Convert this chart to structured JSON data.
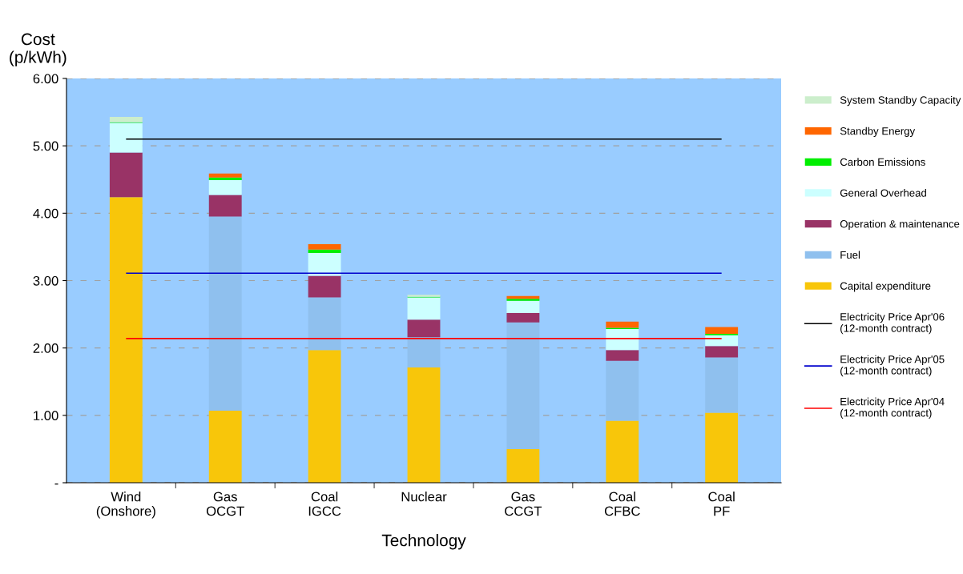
{
  "chart_data": {
    "type": "bar",
    "stacked": true,
    "xlabel": "Technology",
    "ylabel": "Cost\n(p/kWh)",
    "categories": [
      "Wind\n(Onshore)",
      "Gas\nOCGT",
      "Coal\nIGCC",
      "Nuclear",
      "Gas\nCCGT",
      "Coal\nCFBC",
      "Coal\nPF"
    ],
    "series": [
      {
        "name": "Capital expenditure",
        "color": "#f8c60a",
        "values": [
          4.24,
          1.07,
          1.97,
          1.71,
          0.5,
          0.92,
          1.04
        ]
      },
      {
        "name": "Fuel",
        "color": "#8fc0ee",
        "values": [
          0,
          2.88,
          0.78,
          0.45,
          1.88,
          0.89,
          0.82
        ]
      },
      {
        "name": "Operation & maintenance",
        "color": "#993366",
        "values": [
          0.66,
          0.32,
          0.32,
          0.26,
          0.14,
          0.16,
          0.17
        ]
      },
      {
        "name": "General Overhead",
        "color": "#ccffff",
        "values": [
          0.44,
          0.22,
          0.34,
          0.33,
          0.18,
          0.31,
          0.16
        ]
      },
      {
        "name": "Carbon Emissions",
        "color": "#00ee00",
        "values": [
          0.01,
          0.04,
          0.05,
          0.01,
          0.03,
          0.02,
          0.02
        ]
      },
      {
        "name": "Standby Energy",
        "color": "#ff6600",
        "values": [
          0,
          0.06,
          0.08,
          0,
          0.04,
          0.09,
          0.1
        ]
      },
      {
        "name": "System Standby Capacity",
        "color": "#cceecc",
        "values": [
          0.08,
          0,
          0,
          0.03,
          0,
          0,
          0
        ]
      }
    ],
    "ref_lines": [
      {
        "axis": "y",
        "value": 5.1,
        "label": "Electricity Price Apr'06\n(12-month contract)",
        "color": "#000000"
      },
      {
        "axis": "y",
        "value": 3.11,
        "label": "Electricity Price Apr'05\n(12-month contract)",
        "color": "#0000cc"
      },
      {
        "axis": "y",
        "value": 2.14,
        "label": "Electricity Price Apr'04\n(12-month contract)",
        "color": "#ff0000"
      }
    ],
    "ylim": [
      0,
      6
    ],
    "yticks": [
      {
        "value": 0,
        "label": "-"
      },
      {
        "value": 1,
        "label": "1.00"
      },
      {
        "value": 2,
        "label": "2.00"
      },
      {
        "value": 3,
        "label": "3.00"
      },
      {
        "value": 4,
        "label": "4.00"
      },
      {
        "value": 5,
        "label": "5.00"
      },
      {
        "value": 6,
        "label": "6.00"
      }
    ],
    "grid": "y",
    "legend": "right"
  }
}
